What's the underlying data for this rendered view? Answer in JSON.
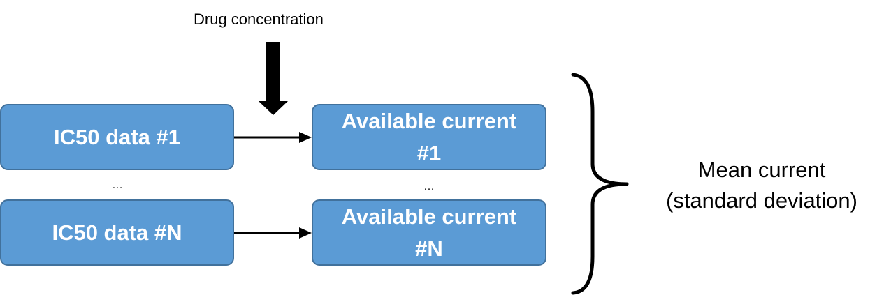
{
  "drug_label": "Drug concentration",
  "inputs": [
    {
      "label": "IC50 data #1"
    },
    {
      "label": "IC50 data #N"
    }
  ],
  "outputs": [
    {
      "line1": "Available current",
      "line2": "#1"
    },
    {
      "line1": "Available current",
      "line2": "#N"
    }
  ],
  "ellipsis_left": "…",
  "ellipsis_right": "…",
  "result": {
    "line1": "Mean current",
    "line2": "(standard deviation)"
  },
  "colors": {
    "box_fill": "#5b9bd5",
    "box_border": "#41719c",
    "arrow": "#000000"
  }
}
